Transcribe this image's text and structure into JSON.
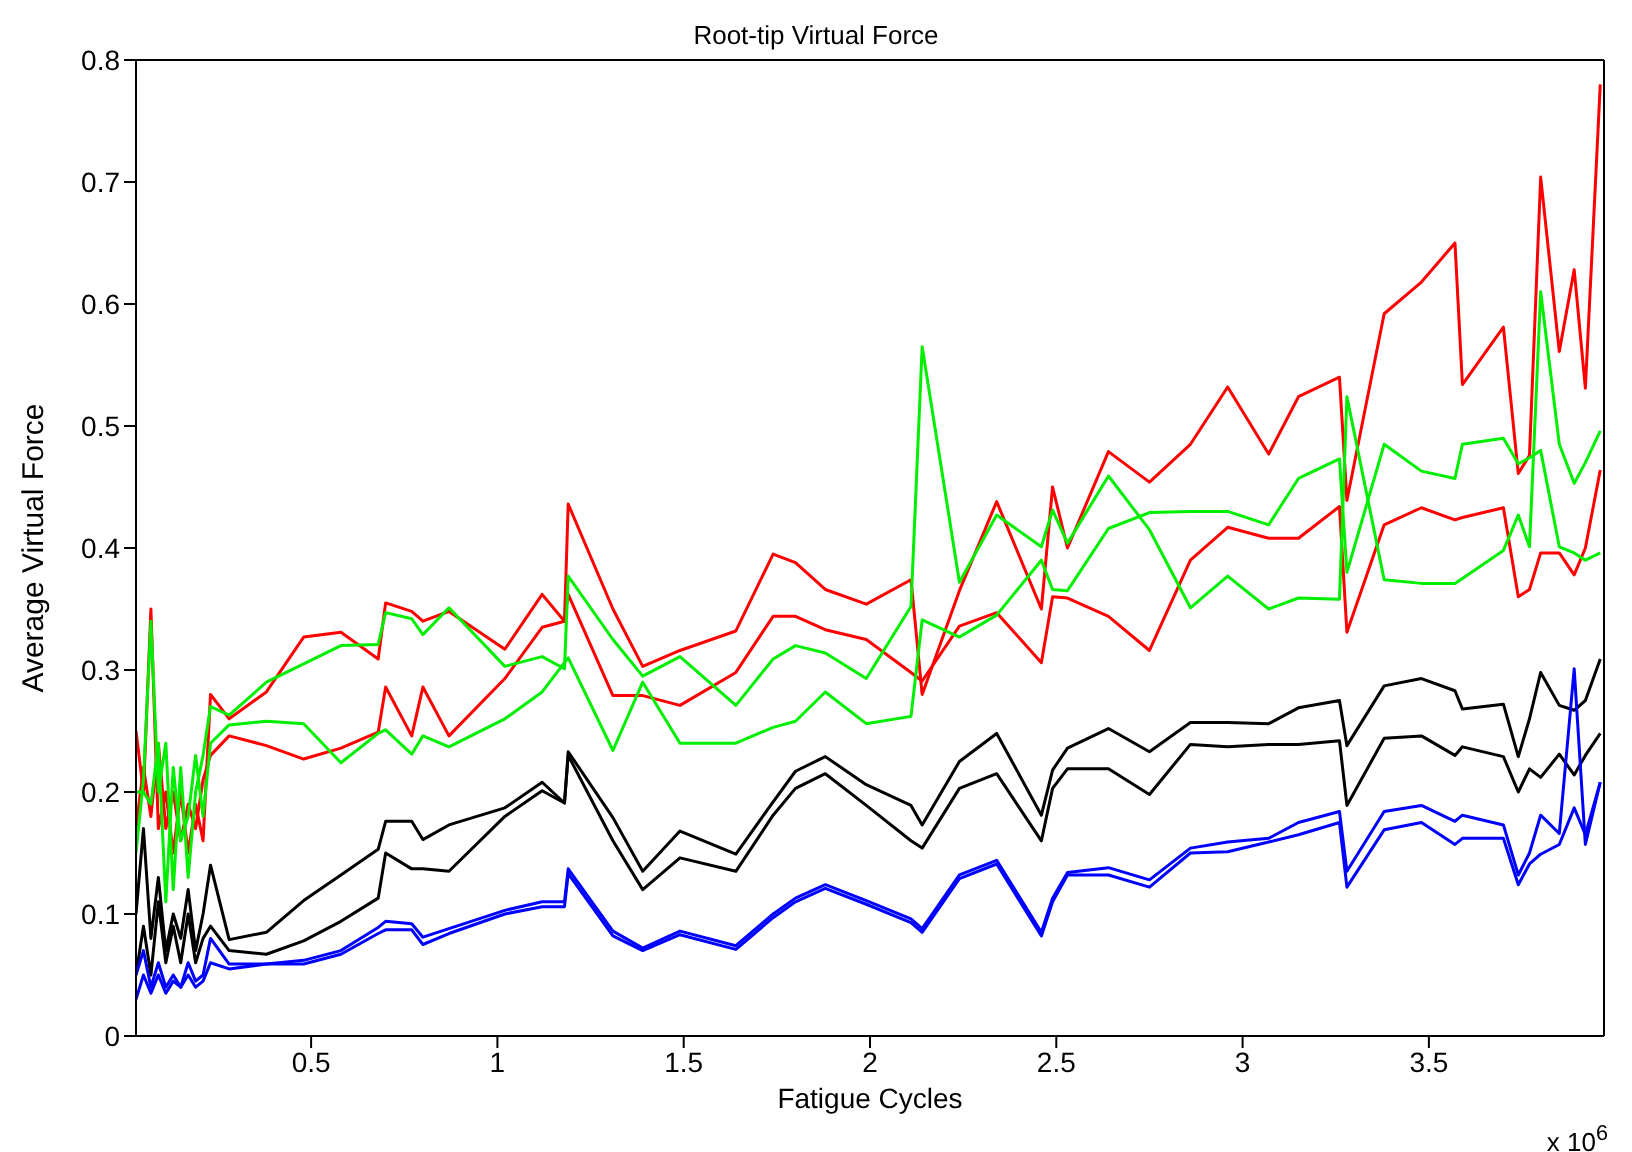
{
  "chart_data": {
    "type": "line",
    "title": "Root-tip Virtual Force",
    "xlabel": "Fatigue Cycles",
    "ylabel": "Average Virtual Force",
    "annotations": [
      "x 10$^{6}$"
    ],
    "xlim": [
      0.03,
      3.97
    ],
    "ylim": [
      0,
      0.8
    ],
    "xticks": [
      0.5,
      1,
      1.5,
      2,
      2.5,
      3,
      3.5
    ],
    "yticks": [
      0,
      0.1,
      0.2,
      0.3,
      0.4,
      0.5,
      0.6,
      0.7,
      0.8
    ],
    "x": [
      0.03,
      0.05,
      0.07,
      0.09,
      0.11,
      0.13,
      0.15,
      0.17,
      0.19,
      0.21,
      0.23,
      0.28,
      0.38,
      0.48,
      0.58,
      0.68,
      0.7,
      0.77,
      0.8,
      0.87,
      1.02,
      1.12,
      1.18,
      1.19,
      1.31,
      1.39,
      1.49,
      1.64,
      1.74,
      1.8,
      1.88,
      1.99,
      2.11,
      2.14,
      2.24,
      2.34,
      2.46,
      2.49,
      2.53,
      2.64,
      2.75,
      2.86,
      2.96,
      3.07,
      3.15,
      3.26,
      3.28,
      3.38,
      3.48,
      3.57,
      3.59,
      3.7,
      3.74,
      3.77,
      3.8,
      3.85,
      3.89,
      3.92,
      3.96
    ],
    "series": [
      {
        "color": "#ff0000",
        "values": [
          0.25,
          0.2,
          0.35,
          0.17,
          0.2,
          0.15,
          0.2,
          0.15,
          0.19,
          0.16,
          0.28,
          0.26,
          0.282,
          0.327,
          0.331,
          0.309,
          0.355,
          0.348,
          0.34,
          0.348,
          0.317,
          0.362,
          0.34,
          0.436,
          0.35,
          0.303,
          0.316,
          0.332,
          0.395,
          0.388,
          0.366,
          0.354,
          0.374,
          0.28,
          0.365,
          0.438,
          0.35,
          0.45,
          0.4,
          0.479,
          0.454,
          0.485,
          0.532,
          0.477,
          0.524,
          0.54,
          0.439,
          0.592,
          0.618,
          0.65,
          0.534,
          0.581,
          0.461,
          0.476,
          0.704,
          0.561,
          0.628,
          0.531,
          0.78
        ]
      },
      {
        "color": "#ff0000",
        "values": [
          0.17,
          0.22,
          0.18,
          0.24,
          0.17,
          0.2,
          0.16,
          0.19,
          0.17,
          0.21,
          0.23,
          0.246,
          0.238,
          0.227,
          0.236,
          0.249,
          0.286,
          0.246,
          0.286,
          0.246,
          0.293,
          0.335,
          0.34,
          0.362,
          0.279,
          0.279,
          0.271,
          0.298,
          0.344,
          0.344,
          0.333,
          0.325,
          0.298,
          0.291,
          0.336,
          0.347,
          0.306,
          0.36,
          0.359,
          0.344,
          0.316,
          0.39,
          0.417,
          0.408,
          0.408,
          0.434,
          0.331,
          0.419,
          0.433,
          0.423,
          0.425,
          0.433,
          0.36,
          0.366,
          0.396,
          0.396,
          0.378,
          0.4,
          0.464
        ]
      },
      {
        "color": "#00ee00",
        "values": [
          0.15,
          0.21,
          0.34,
          0.2,
          0.24,
          0.12,
          0.22,
          0.13,
          0.2,
          0.23,
          0.27,
          0.263,
          0.29,
          0.305,
          0.32,
          0.321,
          0.347,
          0.342,
          0.329,
          0.351,
          0.303,
          0.311,
          0.301,
          0.377,
          0.325,
          0.295,
          0.311,
          0.271,
          0.309,
          0.32,
          0.314,
          0.293,
          0.352,
          0.565,
          0.372,
          0.427,
          0.401,
          0.431,
          0.404,
          0.459,
          0.415,
          0.351,
          0.377,
          0.35,
          0.359,
          0.358,
          0.524,
          0.374,
          0.371,
          0.371,
          0.375,
          0.398,
          0.427,
          0.401,
          0.61,
          0.485,
          0.453,
          0.47,
          0.496
        ]
      },
      {
        "color": "#00ee00",
        "values": [
          0.2,
          0.2,
          0.19,
          0.24,
          0.11,
          0.22,
          0.16,
          0.18,
          0.23,
          0.18,
          0.24,
          0.255,
          0.258,
          0.256,
          0.224,
          0.248,
          0.251,
          0.231,
          0.246,
          0.237,
          0.26,
          0.282,
          0.306,
          0.31,
          0.234,
          0.29,
          0.24,
          0.24,
          0.253,
          0.258,
          0.282,
          0.256,
          0.262,
          0.341,
          0.327,
          0.345,
          0.39,
          0.366,
          0.365,
          0.416,
          0.429,
          0.43,
          0.43,
          0.419,
          0.457,
          0.473,
          0.38,
          0.485,
          0.463,
          0.457,
          0.485,
          0.49,
          0.469,
          0.474,
          0.48,
          0.401,
          0.396,
          0.39,
          0.396
        ]
      },
      {
        "color": "#000000",
        "values": [
          0.1,
          0.17,
          0.08,
          0.13,
          0.07,
          0.1,
          0.08,
          0.12,
          0.07,
          0.1,
          0.14,
          0.079,
          0.085,
          0.111,
          0.132,
          0.153,
          0.176,
          0.176,
          0.161,
          0.173,
          0.187,
          0.208,
          0.191,
          0.233,
          0.179,
          0.135,
          0.168,
          0.149,
          0.192,
          0.217,
          0.229,
          0.206,
          0.189,
          0.173,
          0.225,
          0.248,
          0.181,
          0.218,
          0.236,
          0.252,
          0.233,
          0.257,
          0.257,
          0.256,
          0.269,
          0.275,
          0.238,
          0.287,
          0.293,
          0.283,
          0.268,
          0.272,
          0.229,
          0.26,
          0.298,
          0.271,
          0.267,
          0.275,
          0.309
        ]
      },
      {
        "color": "#000000",
        "values": [
          0.05,
          0.09,
          0.05,
          0.11,
          0.06,
          0.09,
          0.06,
          0.1,
          0.06,
          0.08,
          0.09,
          0.07,
          0.067,
          0.078,
          0.094,
          0.113,
          0.15,
          0.137,
          0.137,
          0.135,
          0.18,
          0.201,
          0.191,
          0.23,
          0.16,
          0.12,
          0.146,
          0.135,
          0.181,
          0.203,
          0.215,
          0.189,
          0.16,
          0.154,
          0.203,
          0.215,
          0.16,
          0.203,
          0.219,
          0.219,
          0.198,
          0.239,
          0.237,
          0.239,
          0.239,
          0.242,
          0.189,
          0.244,
          0.246,
          0.23,
          0.237,
          0.229,
          0.2,
          0.219,
          0.212,
          0.231,
          0.214,
          0.23,
          0.248
        ]
      },
      {
        "color": "#0000ff",
        "values": [
          0.05,
          0.07,
          0.04,
          0.06,
          0.04,
          0.05,
          0.04,
          0.06,
          0.045,
          0.05,
          0.08,
          0.059,
          0.059,
          0.062,
          0.07,
          0.089,
          0.094,
          0.092,
          0.081,
          0.088,
          0.103,
          0.11,
          0.11,
          0.137,
          0.086,
          0.072,
          0.086,
          0.074,
          0.1,
          0.113,
          0.124,
          0.111,
          0.096,
          0.088,
          0.132,
          0.144,
          0.085,
          0.113,
          0.134,
          0.138,
          0.128,
          0.154,
          0.159,
          0.162,
          0.175,
          0.184,
          0.135,
          0.184,
          0.189,
          0.176,
          0.181,
          0.173,
          0.132,
          0.15,
          0.181,
          0.166,
          0.301,
          0.157,
          0.208
        ]
      },
      {
        "color": "#0000ff",
        "values": [
          0.03,
          0.05,
          0.035,
          0.05,
          0.035,
          0.045,
          0.04,
          0.05,
          0.04,
          0.045,
          0.06,
          0.055,
          0.059,
          0.059,
          0.067,
          0.084,
          0.087,
          0.087,
          0.075,
          0.084,
          0.1,
          0.106,
          0.106,
          0.133,
          0.082,
          0.07,
          0.083,
          0.071,
          0.097,
          0.11,
          0.121,
          0.108,
          0.093,
          0.085,
          0.129,
          0.141,
          0.082,
          0.11,
          0.132,
          0.132,
          0.122,
          0.15,
          0.151,
          0.159,
          0.165,
          0.175,
          0.122,
          0.169,
          0.175,
          0.157,
          0.162,
          0.162,
          0.124,
          0.141,
          0.149,
          0.157,
          0.187,
          0.165,
          0.208
        ]
      }
    ]
  }
}
